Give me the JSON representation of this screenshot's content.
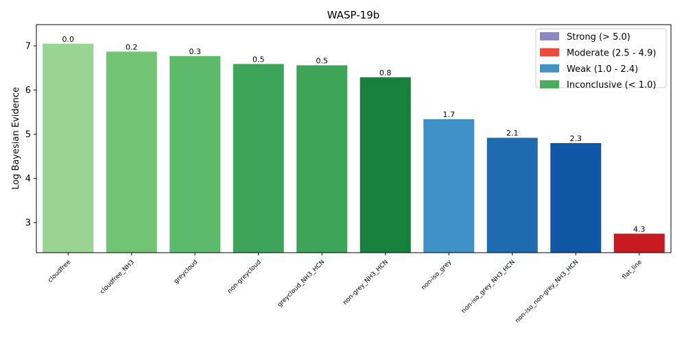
{
  "chart_data": {
    "type": "bar",
    "title": "WASP-19b",
    "xlabel": "",
    "ylabel": "Log Bayesian Evidence",
    "ylim": [
      2.32,
      7.48
    ],
    "yticks": [
      3,
      4,
      5,
      6,
      7
    ],
    "grid": false,
    "legend_position": "top-right",
    "categories": [
      "cloudfree",
      "cloudfree_NH3",
      "greycloud",
      "non-greycloud",
      "greycloud_NH3_HCN",
      "non-grey_NH3_HCN",
      "non-iso_grey",
      "non-iso_grey_NH3_HCN",
      "non-iso_non-grey_NH3_HCN",
      "flat_line"
    ],
    "values": [
      7.05,
      6.87,
      6.77,
      6.59,
      6.56,
      6.29,
      5.34,
      4.92,
      4.8,
      2.75
    ],
    "bar_labels": [
      "0.0",
      "0.2",
      "0.3",
      "0.5",
      "0.5",
      "0.8",
      "1.7",
      "2.1",
      "2.3",
      "4.3"
    ],
    "bar_colors": [
      "#9ad493",
      "#74c476",
      "#5db96b",
      "#3ea45a",
      "#3ea45a",
      "#16803c",
      "#4090c8",
      "#1e6bb0",
      "#1058a5",
      "#c71920"
    ],
    "legend": [
      {
        "label": "Strong (> 5.0)",
        "color": "#8c87c2"
      },
      {
        "label": "Moderate (2.5 - 4.9)",
        "color": "#f0473a"
      },
      {
        "label": "Weak (1.0 - 2.4)",
        "color": "#4292c6"
      },
      {
        "label": "Inconclusive (< 1.0)",
        "color": "#4cac5e"
      }
    ]
  }
}
